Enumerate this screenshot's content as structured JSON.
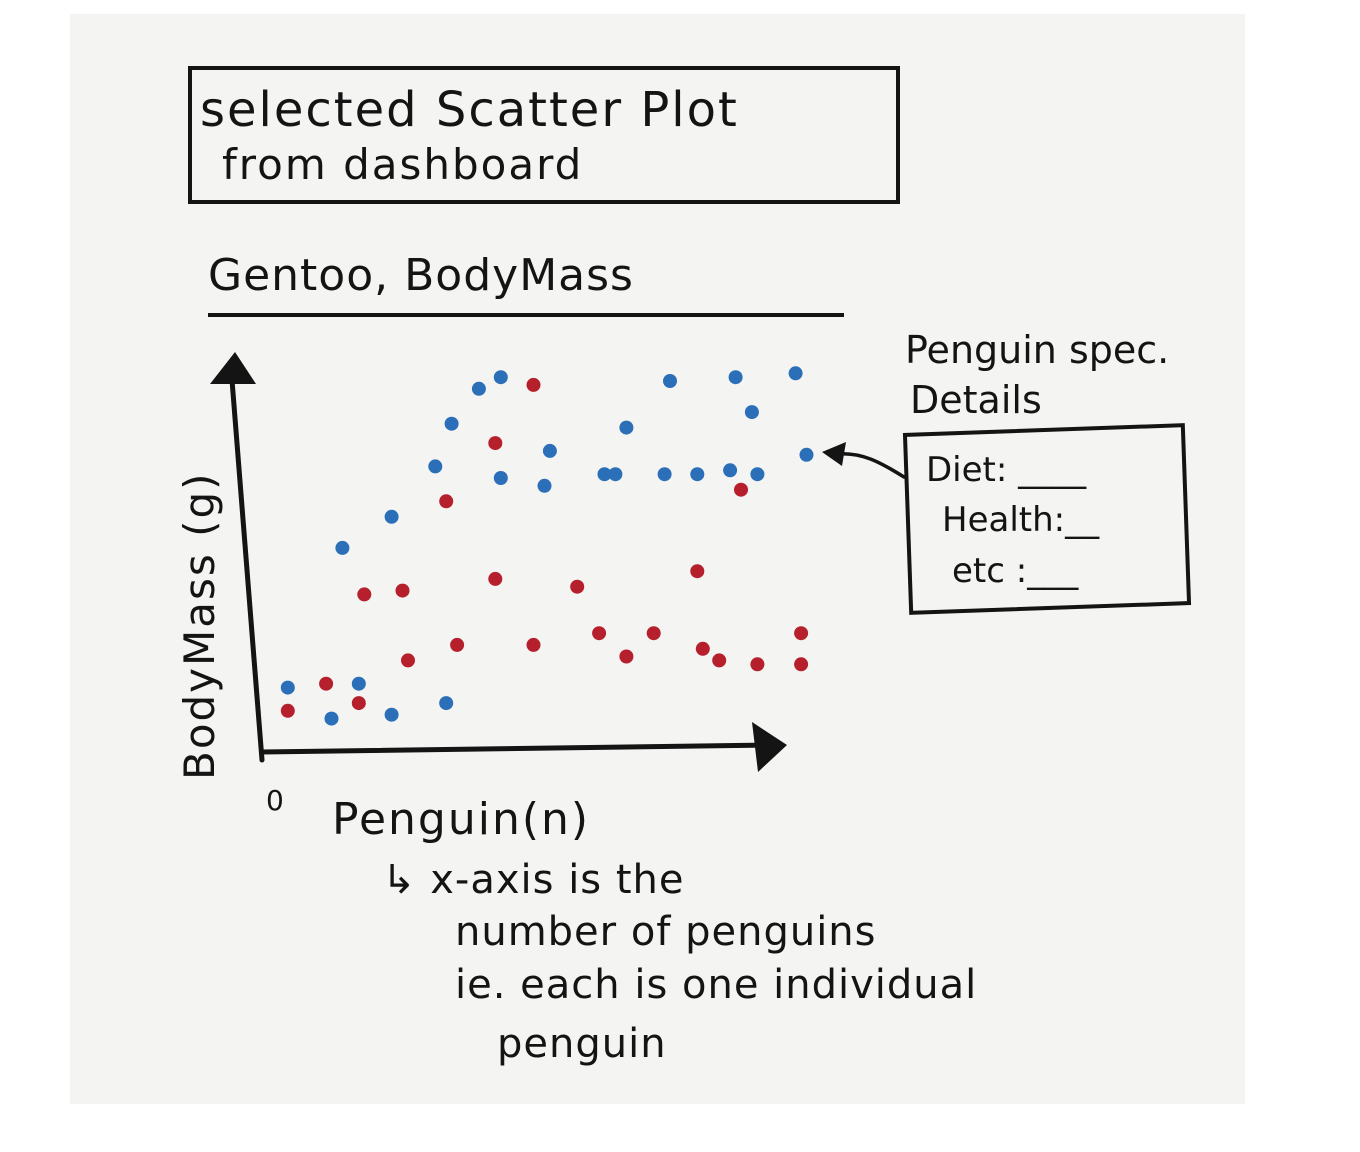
{
  "title": {
    "line1": "selected Scatter Plot",
    "line2": "from dashboard"
  },
  "callout": {
    "title_line1": "Penguin spec.",
    "title_line2": "Details",
    "rows": [
      {
        "label": "Diet:",
        "value": ""
      },
      {
        "label": "Health:",
        "value": ""
      },
      {
        "label": "etc :",
        "value": ""
      }
    ]
  },
  "note": {
    "line1": "↳ x-axis is the",
    "line2": "number of penguins",
    "line3": "ie. each is one individual",
    "line4": "penguin"
  },
  "colors": {
    "ink": "#141414",
    "blue_series": "#2a6fb8",
    "red_series": "#b5202c",
    "paper": "#f4f4f2"
  },
  "chart_data": {
    "type": "scatter",
    "title": "Gentoo, BodyMass",
    "xlabel": "Penguin(n)",
    "ylabel": "BodyMass (g)",
    "x_origin_label": "0",
    "xlim": [
      0,
      100
    ],
    "ylim": [
      0,
      100
    ],
    "grid": false,
    "legend": "none",
    "highlighted_point": {
      "series": "blue",
      "x": 99,
      "y": 73
    },
    "series": [
      {
        "color": "#2a6fb8",
        "points": [
          {
            "x": 4,
            "y": 13
          },
          {
            "x": 12,
            "y": 5
          },
          {
            "x": 17,
            "y": 14
          },
          {
            "x": 14,
            "y": 49
          },
          {
            "x": 23,
            "y": 6
          },
          {
            "x": 23,
            "y": 57
          },
          {
            "x": 31,
            "y": 70
          },
          {
            "x": 33,
            "y": 9
          },
          {
            "x": 34,
            "y": 81
          },
          {
            "x": 39,
            "y": 90
          },
          {
            "x": 43,
            "y": 93
          },
          {
            "x": 43,
            "y": 67
          },
          {
            "x": 51,
            "y": 65
          },
          {
            "x": 52,
            "y": 74
          },
          {
            "x": 62,
            "y": 68
          },
          {
            "x": 64,
            "y": 68
          },
          {
            "x": 66,
            "y": 80
          },
          {
            "x": 73,
            "y": 68
          },
          {
            "x": 74,
            "y": 92
          },
          {
            "x": 79,
            "y": 68
          },
          {
            "x": 85,
            "y": 69
          },
          {
            "x": 86,
            "y": 93
          },
          {
            "x": 89,
            "y": 84
          },
          {
            "x": 90,
            "y": 68
          },
          {
            "x": 97,
            "y": 94
          },
          {
            "x": 99,
            "y": 73
          }
        ]
      },
      {
        "color": "#b5202c",
        "points": [
          {
            "x": 4,
            "y": 7
          },
          {
            "x": 11,
            "y": 14
          },
          {
            "x": 17,
            "y": 9
          },
          {
            "x": 18,
            "y": 37
          },
          {
            "x": 25,
            "y": 38
          },
          {
            "x": 26,
            "y": 20
          },
          {
            "x": 33,
            "y": 61
          },
          {
            "x": 35,
            "y": 24
          },
          {
            "x": 42,
            "y": 76
          },
          {
            "x": 42,
            "y": 41
          },
          {
            "x": 49,
            "y": 91
          },
          {
            "x": 49,
            "y": 24
          },
          {
            "x": 57,
            "y": 39
          },
          {
            "x": 61,
            "y": 27
          },
          {
            "x": 66,
            "y": 21
          },
          {
            "x": 71,
            "y": 27
          },
          {
            "x": 79,
            "y": 43
          },
          {
            "x": 80,
            "y": 23
          },
          {
            "x": 83,
            "y": 20
          },
          {
            "x": 87,
            "y": 64
          },
          {
            "x": 90,
            "y": 19
          },
          {
            "x": 98,
            "y": 27
          },
          {
            "x": 98,
            "y": 19
          }
        ]
      }
    ]
  }
}
